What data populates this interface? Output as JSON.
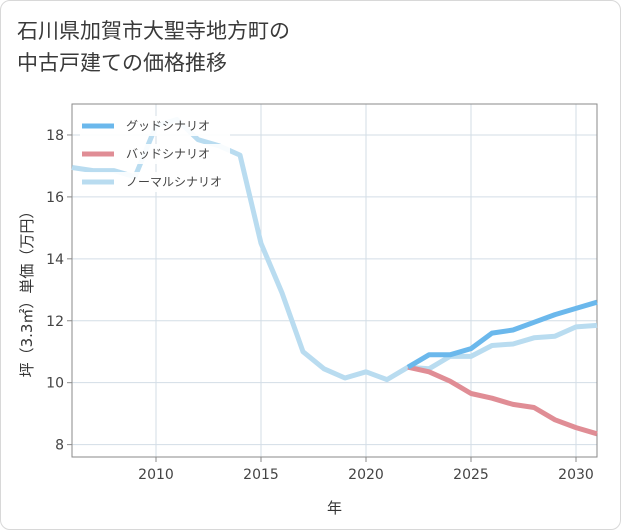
{
  "title": {
    "line1": "石川県加賀市大聖寺地方町の",
    "line2": "中古戸建ての価格推移"
  },
  "chart_data": {
    "type": "line",
    "xlabel": "年",
    "ylabel": "坪（3.3㎡）単価（万円）",
    "xlim": [
      2006,
      2031
    ],
    "ylim": [
      7.6,
      19.0
    ],
    "x_ticks": [
      2010,
      2015,
      2020,
      2025,
      2030
    ],
    "y_ticks": [
      8,
      10,
      12,
      14,
      16,
      18
    ],
    "grid": true,
    "legend_position": "top-left",
    "series": [
      {
        "name": "グッドシナリオ",
        "color": "#6bb8ec",
        "x": [
          2022,
          2023,
          2024,
          2025,
          2026,
          2027,
          2028,
          2029,
          2030,
          2031
        ],
        "y": [
          10.5,
          10.9,
          10.9,
          11.1,
          11.6,
          11.7,
          11.95,
          12.2,
          12.4,
          12.6
        ]
      },
      {
        "name": "バッドシナリオ",
        "color": "#e08d95",
        "x": [
          2022,
          2023,
          2024,
          2025,
          2026,
          2027,
          2028,
          2029,
          2030,
          2031
        ],
        "y": [
          10.5,
          10.35,
          10.05,
          9.65,
          9.5,
          9.3,
          9.2,
          8.8,
          8.55,
          8.35
        ]
      },
      {
        "name": "ノーマルシナリオ",
        "color": "#b9dcf0",
        "x": [
          2006,
          2007,
          2008,
          2009,
          2010,
          2011,
          2012,
          2013,
          2014,
          2015,
          2016,
          2017,
          2018,
          2019,
          2020,
          2021,
          2022,
          2023,
          2024,
          2025,
          2026,
          2027,
          2028,
          2029,
          2030,
          2031
        ],
        "y": [
          16.95,
          16.85,
          16.85,
          16.65,
          18.3,
          18.5,
          17.85,
          17.65,
          17.35,
          14.5,
          12.9,
          11.0,
          10.45,
          10.15,
          10.35,
          10.1,
          10.5,
          10.45,
          10.85,
          10.85,
          11.2,
          11.25,
          11.45,
          11.5,
          11.8,
          11.85
        ]
      }
    ]
  }
}
